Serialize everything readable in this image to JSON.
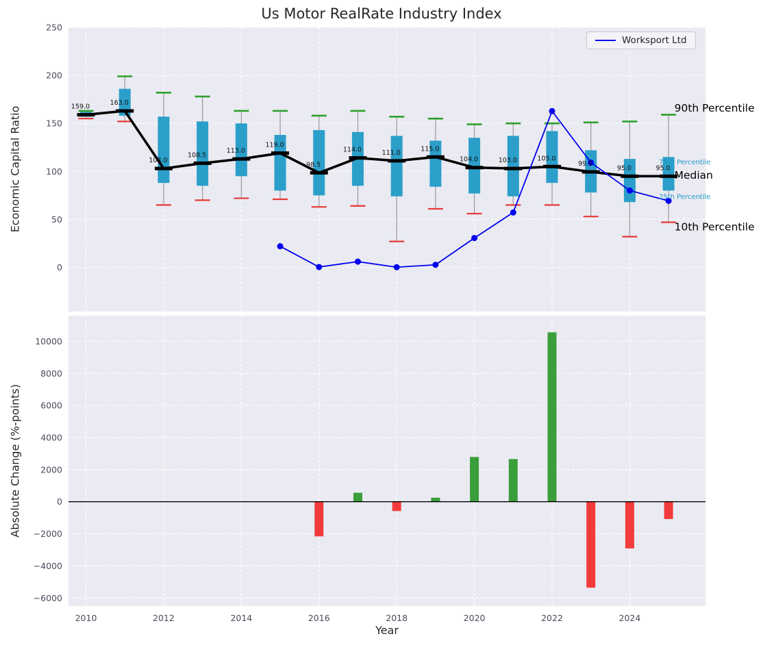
{
  "figure": {
    "title": "Us Motor RealRate Industry Index",
    "xlabel": "Year",
    "legend_label": "Worksport Ltd"
  },
  "colors": {
    "plot_bg": "#eaeaf2",
    "grid": "#ffffff",
    "tick_text": "#4a4a5a",
    "box_fill": "#2b9fc9",
    "green_cap": "#2ca02c",
    "red_cap": "#e53935",
    "median_line": "#000000",
    "series_line": "#0000ee",
    "bar_pos": "#3a9e3a",
    "bar_neg": "#f43b3b",
    "annotation_teal": "#1f9ac9"
  },
  "chart_data": [
    {
      "type": "boxplot+line",
      "title": "Us Motor RealRate Industry Index",
      "ylabel": "Economic Capital Ratio",
      "ylim": [
        -46,
        250
      ],
      "yticks": [
        0,
        50,
        100,
        150,
        200,
        250
      ],
      "xlim": [
        2009.55,
        2025.95
      ],
      "grid": true,
      "legend_position": "top-right",
      "boxes": [
        {
          "year": 2010,
          "p10": 155,
          "p25": 157,
          "median": 159.0,
          "p75": 162,
          "p90": 163,
          "label": "159.0"
        },
        {
          "year": 2011,
          "p10": 152,
          "p25": 158,
          "median": 163.0,
          "p75": 186,
          "p90": 199,
          "label": "163.0"
        },
        {
          "year": 2012,
          "p10": 65,
          "p25": 88,
          "median": 103.0,
          "p75": 157,
          "p90": 182,
          "label": "103.0"
        },
        {
          "year": 2013,
          "p10": 70,
          "p25": 85,
          "median": 108.5,
          "p75": 152,
          "p90": 178,
          "label": "108.5"
        },
        {
          "year": 2014,
          "p10": 72,
          "p25": 95,
          "median": 113.0,
          "p75": 150,
          "p90": 163,
          "label": "113.0"
        },
        {
          "year": 2015,
          "p10": 71,
          "p25": 80,
          "median": 119.0,
          "p75": 138,
          "p90": 163,
          "label": "119.0"
        },
        {
          "year": 2016,
          "p10": 63,
          "p25": 75,
          "median": 98.5,
          "p75": 143,
          "p90": 158,
          "label": "98.5"
        },
        {
          "year": 2017,
          "p10": 64,
          "p25": 85,
          "median": 114.0,
          "p75": 141,
          "p90": 163,
          "label": "114.0"
        },
        {
          "year": 2018,
          "p10": 27,
          "p25": 74,
          "median": 111.0,
          "p75": 137,
          "p90": 157,
          "label": "111.0"
        },
        {
          "year": 2019,
          "p10": 61,
          "p25": 84,
          "median": 115.0,
          "p75": 132,
          "p90": 155,
          "label": "115.0"
        },
        {
          "year": 2020,
          "p10": 56,
          "p25": 77,
          "median": 104.0,
          "p75": 135,
          "p90": 149,
          "label": "104.0"
        },
        {
          "year": 2021,
          "p10": 65,
          "p25": 74,
          "median": 103.0,
          "p75": 137,
          "p90": 150,
          "label": "103.0"
        },
        {
          "year": 2022,
          "p10": 65,
          "p25": 88,
          "median": 105.0,
          "p75": 142,
          "p90": 150,
          "label": "105.0"
        },
        {
          "year": 2023,
          "p10": 53,
          "p25": 78,
          "median": 99.5,
          "p75": 122,
          "p90": 151,
          "label": "99.5"
        },
        {
          "year": 2024,
          "p10": 32,
          "p25": 68,
          "median": 95.0,
          "p75": 113,
          "p90": 152,
          "label": "95.0"
        },
        {
          "year": 2025,
          "p10": 47,
          "p25": 80,
          "median": 95.0,
          "p75": 115,
          "p90": 159,
          "label": "95.0"
        }
      ],
      "series": {
        "name": "Worksport Ltd",
        "x": [
          2015,
          2016,
          2017,
          2018,
          2019,
          2020,
          2021,
          2022,
          2023,
          2024,
          2025
        ],
        "y": [
          22.0,
          0.4,
          6.0,
          0.2,
          2.7,
          30.6,
          57.2,
          162.8,
          109.2,
          80.1,
          69.3
        ]
      },
      "annotations": [
        {
          "text": "90th Percentile",
          "x": 2025.15,
          "y": 166,
          "style": "large"
        },
        {
          "text": "75th Percentile",
          "x": 2024.75,
          "y": 111,
          "style": "small"
        },
        {
          "text": "Median",
          "x": 2025.15,
          "y": 96,
          "style": "large"
        },
        {
          "text": "25th Percentile",
          "x": 2024.75,
          "y": 75,
          "style": "small"
        },
        {
          "text": "10th Percentile",
          "x": 2025.15,
          "y": 42,
          "style": "large"
        }
      ]
    },
    {
      "type": "bar",
      "ylabel": "Absolute Change (%-points)",
      "xlabel": "Year",
      "ylim": [
        -6500,
        11600
      ],
      "yticks": [
        -6000,
        -4000,
        -2000,
        0,
        2000,
        4000,
        6000,
        8000,
        10000
      ],
      "xticks": [
        2010,
        2012,
        2014,
        2016,
        2018,
        2020,
        2022,
        2024
      ],
      "grid": true,
      "categories": [
        2016,
        2017,
        2018,
        2019,
        2020,
        2021,
        2022,
        2023,
        2024,
        2025
      ],
      "values": [
        -2160,
        560,
        -580,
        250,
        2790,
        2660,
        10560,
        -5360,
        -2910,
        -1080
      ]
    }
  ]
}
